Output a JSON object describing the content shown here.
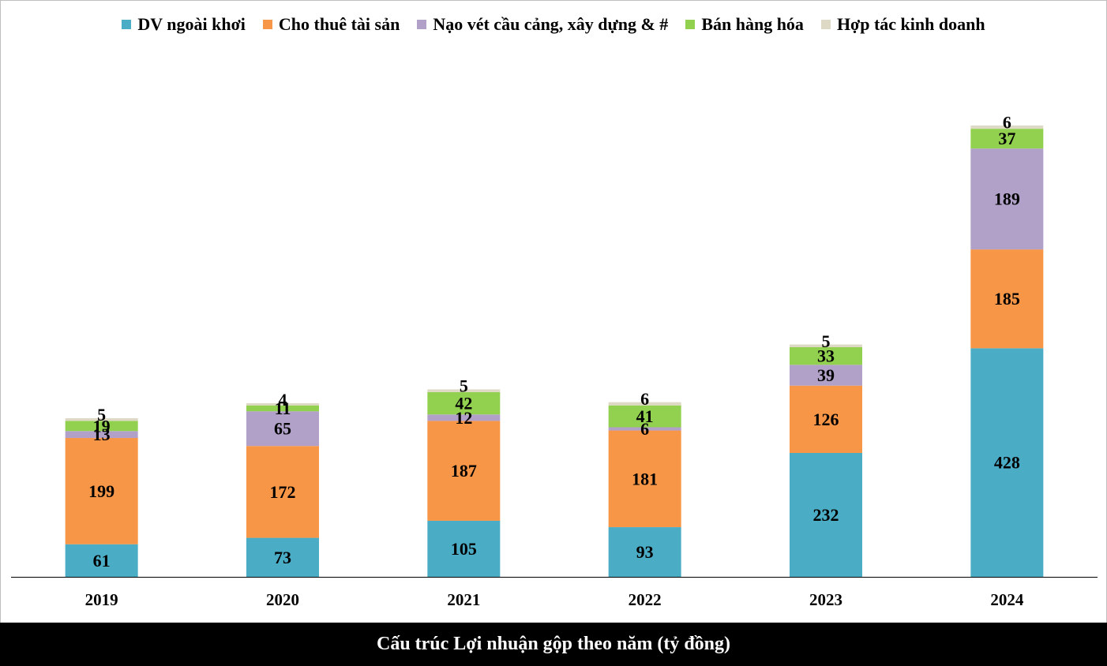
{
  "chart_data": {
    "type": "bar",
    "stacked": true,
    "title": "Cấu trúc Lợi nhuận gộp theo năm (tỷ đồng)",
    "categories": [
      "2019",
      "2020",
      "2021",
      "2022",
      "2023",
      "2024"
    ],
    "ylim": [
      0,
      1000
    ],
    "grid": false,
    "legend_position": "top",
    "series": [
      {
        "name": "DV ngoài khơi",
        "color": "#4BACC6",
        "values": [
          61,
          73,
          105,
          93,
          232,
          428
        ]
      },
      {
        "name": "Cho thuê tài sản",
        "color": "#F79646",
        "values": [
          199,
          172,
          187,
          181,
          126,
          185
        ]
      },
      {
        "name": "Nạo vét cầu cảng, xây dựng & #",
        "color": "#B1A0C7",
        "values": [
          13,
          65,
          12,
          6,
          39,
          189
        ]
      },
      {
        "name": "Bán hàng hóa",
        "color": "#92D050",
        "values": [
          19,
          11,
          42,
          41,
          33,
          37
        ]
      },
      {
        "name": "Hợp tác kinh doanh",
        "color": "#DDD9C4",
        "values": [
          5,
          4,
          5,
          6,
          5,
          6
        ]
      }
    ]
  }
}
